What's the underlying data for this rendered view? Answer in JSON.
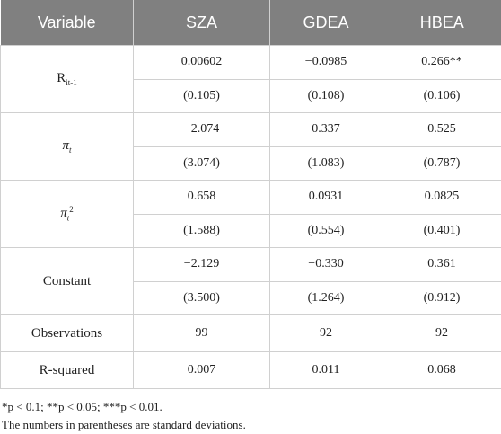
{
  "table": {
    "header": [
      "Variable",
      "SZA",
      "GDEA",
      "HBEA"
    ],
    "rows": [
      {
        "variable": {
          "base": "R",
          "sub": "it-1"
        },
        "values": [
          "0.00602",
          "−0.0985",
          "0.266**"
        ],
        "errors": [
          "(0.105)",
          "(0.108)",
          "(0.106)"
        ]
      },
      {
        "variable": {
          "base": "π",
          "sub": "t"
        },
        "values": [
          "−2.074",
          "0.337",
          "0.525"
        ],
        "errors": [
          "(3.074)",
          "(1.083)",
          "(0.787)"
        ]
      },
      {
        "variable": {
          "base": "π",
          "sub": "t",
          "sup": "2"
        },
        "values": [
          "0.658",
          "0.0931",
          "0.0825"
        ],
        "errors": [
          "(1.588)",
          "(0.554)",
          "(0.401)"
        ]
      },
      {
        "variable": {
          "base": "Constant"
        },
        "values": [
          "−2.129",
          "−0.330",
          "0.361"
        ],
        "errors": [
          "(3.500)",
          "(1.264)",
          "(0.912)"
        ]
      },
      {
        "variable": {
          "base": "Observations"
        },
        "values": [
          "99",
          "92",
          "92"
        ]
      },
      {
        "variable": {
          "base": "R-squared"
        },
        "values": [
          "0.007",
          "0.011",
          "0.068"
        ]
      }
    ]
  },
  "footnotes": [
    "*p < 0.1; **p < 0.05; ***p < 0.01.",
    "The numbers in parentheses are standard deviations."
  ]
}
